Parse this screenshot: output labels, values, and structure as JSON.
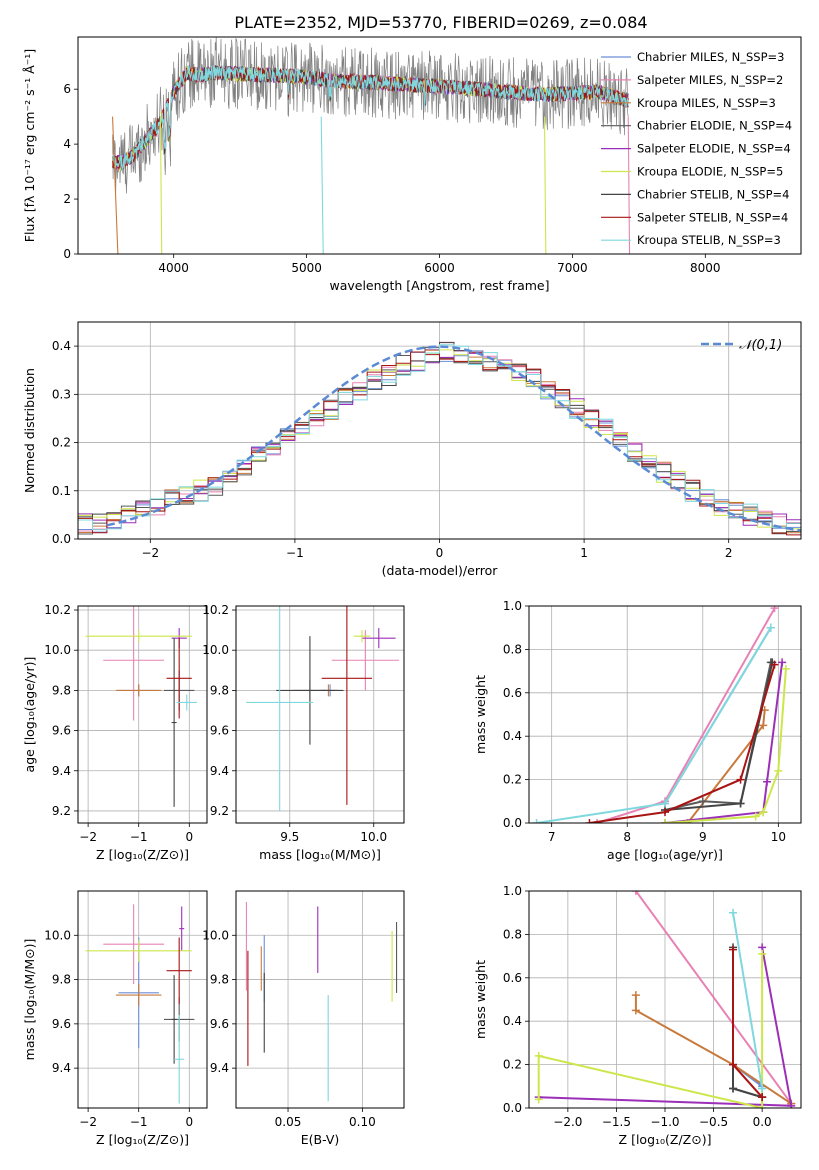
{
  "figure_title": "PLATE=2352, MJD=53770, FIBERID=0269, z=0.084",
  "palette": {
    "Chabrier MILES": "#6a8fd8",
    "Salpeter MILES": "#e882b4",
    "Kroupa MILES": "#c87a3c",
    "Chabrier ELODIE": "#5a5a5a",
    "Salpeter ELODIE": "#9c2fb8",
    "Kroupa ELODIE": "#cde64a",
    "Chabrier STELIB": "#444444",
    "Salpeter STELIB": "#a81414",
    "Kroupa STELIB": "#7fd8de",
    "data": "#808080",
    "normal_curve": "#5b8ad4"
  },
  "chart_data": [
    {
      "type": "line",
      "title": "PLATE=2352, MJD=53770, FIBERID=0269, z=0.084",
      "xlabel": "wavelength [Angstrom, rest frame]",
      "ylabel": "Flux [fλ 10⁻¹⁷ erg cm⁻² s⁻¹ Å⁻¹]",
      "xlim": [
        3280,
        8720
      ],
      "ylim": [
        0,
        7.9
      ],
      "xticks": [
        4000,
        5000,
        6000,
        7000,
        8000
      ],
      "yticks": [
        0,
        2,
        4,
        6
      ],
      "legend": "upper right",
      "series_names": [
        "Chabrier MILES, N_SSP=3",
        "Salpeter MILES, N_SSP=2",
        "Kroupa MILES, N_SSP=3",
        "Chabrier ELODIE, N_SSP=4",
        "Salpeter ELODIE, N_SSP=4",
        "Kroupa ELODIE, N_SSP=5",
        "Chabrier STELIB, N_SSP=4",
        "Salpeter STELIB, N_SSP=4",
        "Kroupa STELIB, N_SSP=3"
      ],
      "continuum": {
        "x": [
          3540,
          3600,
          3700,
          3800,
          3900,
          4000,
          4100,
          4200,
          4300,
          4500,
          4800,
          5000,
          5200,
          5500,
          5800,
          6000,
          6300,
          6500,
          6800,
          7000,
          7200,
          7400
        ],
        "y": [
          3.4,
          3.3,
          3.6,
          4.2,
          4.8,
          5.9,
          6.6,
          6.5,
          6.6,
          6.55,
          6.5,
          6.45,
          6.3,
          6.25,
          6.15,
          6.1,
          6.0,
          5.9,
          5.8,
          5.85,
          5.9,
          5.6
        ]
      }
    },
    {
      "type": "bar",
      "xlabel": "(data-model)/error",
      "ylabel": "Normed distribution",
      "xlim": [
        -2.5,
        2.5
      ],
      "ylim": [
        0,
        0.45
      ],
      "xticks": [
        -2,
        -1,
        0,
        1,
        2
      ],
      "yticks": [
        0.0,
        0.1,
        0.2,
        0.3,
        0.4
      ],
      "legend_label": "𝒩(0,1)",
      "bin_edges_start": -2.5,
      "bin_width": 0.1,
      "mean_histogram": [
        0.03,
        0.03,
        0.04,
        0.05,
        0.07,
        0.07,
        0.08,
        0.09,
        0.1,
        0.11,
        0.13,
        0.15,
        0.17,
        0.19,
        0.21,
        0.23,
        0.25,
        0.27,
        0.29,
        0.31,
        0.33,
        0.34,
        0.36,
        0.37,
        0.38,
        0.39,
        0.38,
        0.38,
        0.37,
        0.36,
        0.35,
        0.33,
        0.31,
        0.29,
        0.27,
        0.25,
        0.23,
        0.21,
        0.18,
        0.16,
        0.14,
        0.12,
        0.1,
        0.09,
        0.07,
        0.06,
        0.05,
        0.04,
        0.03,
        0.03
      ]
    },
    {
      "type": "scatter",
      "xlabel": "Z [log₁₀(Z/Z⊙)]",
      "ylabel": "age  [log₁₀(age/yr)]",
      "xlim": [
        -2.2,
        0.35
      ],
      "ylim": [
        9.14,
        10.22
      ],
      "xticks": [
        -2,
        -1,
        0
      ],
      "yticks": [
        9.2,
        9.4,
        9.6,
        9.8,
        10.0,
        10.2
      ],
      "points": [
        {
          "model": "Chabrier MILES",
          "x": -1.0,
          "y": 9.8,
          "xerr": 0.4,
          "yerr": 0.03
        },
        {
          "model": "Salpeter MILES",
          "x": -1.1,
          "y": 9.95,
          "xerr": 0.6,
          "yerr": 0.3
        },
        {
          "model": "Kroupa MILES",
          "x": -1.0,
          "y": 9.8,
          "xerr": 0.45,
          "yerr": 0.03
        },
        {
          "model": "Chabrier ELODIE",
          "x": -0.2,
          "y": 9.8,
          "xerr": 0.3,
          "yerr": 0.1
        },
        {
          "model": "Salpeter ELODIE",
          "x": -0.2,
          "y": 10.06,
          "xerr": 0.15,
          "yerr": 0.05
        },
        {
          "model": "Kroupa ELODIE",
          "x": -1.0,
          "y": 10.07,
          "xerr": 1.05,
          "yerr": 0.03
        },
        {
          "model": "Chabrier STELIB",
          "x": -0.3,
          "y": 9.64,
          "xerr": 0.05,
          "yerr": 0.42
        },
        {
          "model": "Salpeter STELIB",
          "x": -0.2,
          "y": 9.86,
          "xerr": 0.25,
          "yerr": 0.2
        },
        {
          "model": "Kroupa STELIB",
          "x": -0.05,
          "y": 9.74,
          "xerr": 0.2,
          "yerr": 0.04
        }
      ]
    },
    {
      "type": "scatter",
      "xlabel": "mass [log₁₀(M/M⊙)]",
      "ylabel": "",
      "xlim": [
        9.18,
        10.18
      ],
      "ylim": [
        9.14,
        10.22
      ],
      "xticks": [
        9.5,
        10.0
      ],
      "yticks": [
        9.2,
        9.4,
        9.6,
        9.8,
        10.0,
        10.2
      ],
      "points": [
        {
          "model": "Chabrier MILES",
          "x": 9.74,
          "y": 9.8,
          "xerr": 0.05,
          "yerr": 0.03
        },
        {
          "model": "Salpeter MILES",
          "x": 9.95,
          "y": 9.95,
          "xerr": 0.2,
          "yerr": 0.15
        },
        {
          "model": "Kroupa MILES",
          "x": 9.73,
          "y": 9.8,
          "xerr": 0.05,
          "yerr": 0.03
        },
        {
          "model": "Chabrier ELODIE",
          "x": 9.62,
          "y": 9.8,
          "xerr": 0.1,
          "yerr": 0.05
        },
        {
          "model": "Salpeter ELODIE",
          "x": 10.03,
          "y": 10.06,
          "xerr": 0.1,
          "yerr": 0.05
        },
        {
          "model": "Kroupa ELODIE",
          "x": 9.93,
          "y": 10.07,
          "xerr": 0.05,
          "yerr": 0.03
        },
        {
          "model": "Chabrier STELIB",
          "x": 9.62,
          "y": 9.8,
          "xerr": 0.2,
          "yerr": 0.27
        },
        {
          "model": "Salpeter STELIB",
          "x": 9.84,
          "y": 9.86,
          "xerr": 0.15,
          "yerr": 0.63
        },
        {
          "model": "Kroupa STELIB",
          "x": 9.44,
          "y": 9.74,
          "xerr": 0.2,
          "yerr": 0.54
        }
      ]
    },
    {
      "type": "line",
      "xlabel": "age  [log₁₀(age/yr)]",
      "ylabel": "mass weight",
      "xlim": [
        6.7,
        10.3
      ],
      "ylim": [
        0,
        1.0
      ],
      "xticks": [
        7,
        8,
        9,
        10
      ],
      "yticks": [
        0.0,
        0.2,
        0.4,
        0.6,
        0.8,
        1.0
      ],
      "series": [
        {
          "model": "Chabrier MILES",
          "x": [
            8.5,
            9.9
          ],
          "y": [
            0.09,
            0.9
          ]
        },
        {
          "model": "Salpeter MILES",
          "x": [
            7.6,
            8.5,
            9.95
          ],
          "y": [
            0.0,
            0.1,
            0.99
          ]
        },
        {
          "model": "Kroupa MILES",
          "x": [
            8.8,
            9.8,
            9.82
          ],
          "y": [
            0.0,
            0.45,
            0.52
          ]
        },
        {
          "model": "Chabrier ELODIE",
          "x": [
            8.5,
            9.0,
            9.5,
            9.9
          ],
          "y": [
            0.06,
            0.1,
            0.09,
            0.74
          ]
        },
        {
          "model": "Salpeter ELODIE",
          "x": [
            8.5,
            9.8,
            9.85,
            10.05
          ],
          "y": [
            0.0,
            0.05,
            0.19,
            0.74
          ]
        },
        {
          "model": "Kroupa ELODIE",
          "x": [
            8.5,
            9.7,
            9.8,
            10.0,
            10.1
          ],
          "y": [
            0.0,
            0.03,
            0.05,
            0.24,
            0.71
          ]
        },
        {
          "model": "Chabrier STELIB",
          "x": [
            8.5,
            9.5,
            9.92
          ],
          "y": [
            0.06,
            0.09,
            0.74
          ]
        },
        {
          "model": "Salpeter STELIB",
          "x": [
            7.5,
            8.5,
            9.5,
            9.95
          ],
          "y": [
            0.0,
            0.05,
            0.2,
            0.73
          ]
        },
        {
          "model": "Kroupa STELIB",
          "x": [
            6.8,
            8.5,
            9.9
          ],
          "y": [
            0.0,
            0.09,
            0.9
          ]
        }
      ]
    },
    {
      "type": "scatter",
      "xlabel": "Z [log₁₀(Z/Z⊙)]",
      "ylabel": "mass [log₁₀(M/M⊙)]",
      "xlim": [
        -2.2,
        0.35
      ],
      "ylim": [
        9.22,
        10.2
      ],
      "xticks": [
        -2,
        -1,
        0
      ],
      "yticks": [
        9.4,
        9.6,
        9.8,
        10.0
      ],
      "points": [
        {
          "model": "Chabrier MILES",
          "x": -1.0,
          "y": 9.74,
          "xerr": 0.4,
          "yerr": 0.25
        },
        {
          "model": "Salpeter MILES",
          "x": -1.1,
          "y": 9.96,
          "xerr": 0.6,
          "yerr": 0.18
        },
        {
          "model": "Kroupa MILES",
          "x": -1.0,
          "y": 9.73,
          "xerr": 0.45,
          "yerr": 0.05
        },
        {
          "model": "Chabrier ELODIE",
          "x": -0.2,
          "y": 9.62,
          "xerr": 0.3,
          "yerr": 0.1
        },
        {
          "model": "Salpeter ELODIE",
          "x": -0.15,
          "y": 10.03,
          "xerr": 0.05,
          "yerr": 0.1
        },
        {
          "model": "Kroupa ELODIE",
          "x": -1.0,
          "y": 9.93,
          "xerr": 1.05,
          "yerr": 0.05
        },
        {
          "model": "Chabrier STELIB",
          "x": -0.3,
          "y": 9.62,
          "xerr": 0.05,
          "yerr": 0.2
        },
        {
          "model": "Salpeter STELIB",
          "x": -0.2,
          "y": 9.84,
          "xerr": 0.25,
          "yerr": 0.15
        },
        {
          "model": "Kroupa STELIB",
          "x": -0.2,
          "y": 9.44,
          "xerr": 0.1,
          "yerr": 0.2
        }
      ]
    },
    {
      "type": "scatter",
      "xlabel": "E(B-V)",
      "ylabel": "",
      "xlim": [
        0.015,
        0.128
      ],
      "ylim": [
        9.22,
        10.2
      ],
      "xticks": [
        0.05,
        0.1
      ],
      "yticks": [
        9.4,
        9.6,
        9.8,
        10.0
      ],
      "points": [
        {
          "model": "Salpeter MILES",
          "x": 0.022,
          "y": 9.95,
          "yerr": 0.2
        },
        {
          "model": "Salpeter STELIB",
          "x": 0.023,
          "y": 9.67,
          "yerr": 0.26
        },
        {
          "model": "Chabrier MILES",
          "x": 0.034,
          "y": 9.85,
          "yerr": 0.15
        },
        {
          "model": "Kroupa MILES",
          "x": 0.032,
          "y": 9.85,
          "yerr": 0.1
        },
        {
          "model": "Chabrier STELIB",
          "x": 0.034,
          "y": 9.65,
          "yerr": 0.18
        },
        {
          "model": "Salpeter ELODIE",
          "x": 0.07,
          "y": 9.98,
          "yerr": 0.15
        },
        {
          "model": "Kroupa STELIB",
          "x": 0.077,
          "y": 9.49,
          "yerr": 0.24
        },
        {
          "model": "Kroupa ELODIE",
          "x": 0.12,
          "y": 9.86,
          "yerr": 0.16
        },
        {
          "model": "Chabrier ELODIE",
          "x": 0.123,
          "y": 9.9,
          "yerr": 0.16
        }
      ]
    },
    {
      "type": "line",
      "xlabel": "Z [log₁₀(Z/Z⊙)]",
      "ylabel": "mass weight",
      "xlim": [
        -2.4,
        0.4
      ],
      "ylim": [
        0,
        1.0
      ],
      "xticks": [
        -2.0,
        -1.5,
        -1.0,
        -0.5,
        0.0
      ],
      "yticks": [
        0.0,
        0.2,
        0.4,
        0.6,
        0.8,
        1.0
      ],
      "series": [
        {
          "model": "Chabrier MILES",
          "x": [
            -0.3,
            0.0
          ],
          "y": [
            0.2,
            0.1
          ]
        },
        {
          "model": "Salpeter MILES",
          "x": [
            -1.3,
            0.3
          ],
          "y": [
            1.0,
            0.02
          ]
        },
        {
          "model": "Kroupa MILES",
          "x": [
            -1.3,
            -1.3,
            -0.3,
            0.3
          ],
          "y": [
            0.52,
            0.45,
            0.2,
            0.02
          ]
        },
        {
          "model": "Chabrier ELODIE",
          "x": [
            -0.3,
            0.0
          ],
          "y": [
            0.09,
            0.05
          ]
        },
        {
          "model": "Salpeter ELODIE",
          "x": [
            -2.3,
            0.3,
            0.0
          ],
          "y": [
            0.05,
            0.01,
            0.74
          ]
        },
        {
          "model": "Kroupa ELODIE",
          "x": [
            -2.3,
            -2.3,
            0.0,
            0.0
          ],
          "y": [
            0.04,
            0.24,
            0.0,
            0.71
          ]
        },
        {
          "model": "Chabrier STELIB",
          "x": [
            -0.3,
            -0.3,
            0.0
          ],
          "y": [
            0.74,
            0.09,
            0.05
          ]
        },
        {
          "model": "Salpeter STELIB",
          "x": [
            -0.3,
            -0.3,
            0.0
          ],
          "y": [
            0.73,
            0.2,
            0.05
          ]
        },
        {
          "model": "Kroupa STELIB",
          "x": [
            -0.3,
            0.0,
            0.0
          ],
          "y": [
            0.9,
            0.09,
            0.09
          ]
        }
      ]
    }
  ]
}
